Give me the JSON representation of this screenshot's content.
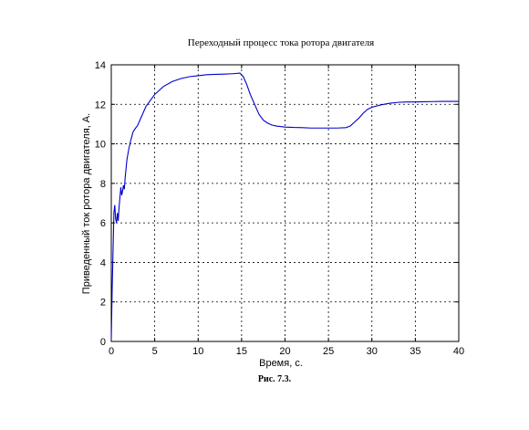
{
  "chart_data": {
    "type": "line",
    "title": "Переходный процесс тока ротора двигателя",
    "xlabel": "Время, с.",
    "ylabel": "Приведенный ток ротора двигателя,  А.",
    "caption": "Рис. 7.3.",
    "xlim": [
      0,
      40
    ],
    "ylim": [
      0,
      14
    ],
    "xticks": [
      0,
      5,
      10,
      15,
      20,
      25,
      30,
      35,
      40
    ],
    "yticks": [
      0,
      2,
      4,
      6,
      8,
      10,
      12,
      14
    ],
    "grid": true,
    "line_color": "#0000cc",
    "series": [
      {
        "x": [
          0,
          0.1,
          0.2,
          0.3,
          0.4,
          0.5,
          0.6,
          0.7,
          0.8,
          0.9,
          1.0,
          1.1,
          1.2,
          1.3,
          1.4,
          1.5,
          1.6,
          1.8,
          2.0,
          2.2,
          2.5,
          2.8,
          3.0,
          3.5,
          4.0,
          4.5,
          5.0,
          5.5,
          6.0,
          7.0,
          8.0,
          9.0,
          10.0,
          11.0,
          12.0,
          13.0,
          14.0,
          14.8,
          15.2,
          15.6,
          16.0,
          16.5,
          17.0,
          17.5,
          18.0,
          18.5,
          19.0,
          20.0,
          21.0,
          22.0,
          23.0,
          24.0,
          25.0,
          26.0,
          27.0,
          27.5,
          28.0,
          28.5,
          29.0,
          29.5,
          30.0,
          31.0,
          32.0,
          33.0,
          34.0,
          35.0,
          36.0,
          37.0,
          38.0,
          40.0
        ],
        "y": [
          0.1,
          2.6,
          4.5,
          6.5,
          6.9,
          6.2,
          6.0,
          6.5,
          6.1,
          6.8,
          7.3,
          7.8,
          7.4,
          7.6,
          7.9,
          7.7,
          8.3,
          9.2,
          9.7,
          10.1,
          10.6,
          10.8,
          10.9,
          11.4,
          11.9,
          12.2,
          12.5,
          12.7,
          12.9,
          13.15,
          13.3,
          13.4,
          13.45,
          13.5,
          13.52,
          13.53,
          13.55,
          13.58,
          13.4,
          13.0,
          12.5,
          12.0,
          11.5,
          11.2,
          11.05,
          10.95,
          10.9,
          10.85,
          10.83,
          10.82,
          10.8,
          10.8,
          10.8,
          10.8,
          10.82,
          10.9,
          11.1,
          11.3,
          11.55,
          11.75,
          11.85,
          11.97,
          12.05,
          12.1,
          12.12,
          12.12,
          12.13,
          12.14,
          12.15,
          12.15
        ]
      }
    ]
  }
}
